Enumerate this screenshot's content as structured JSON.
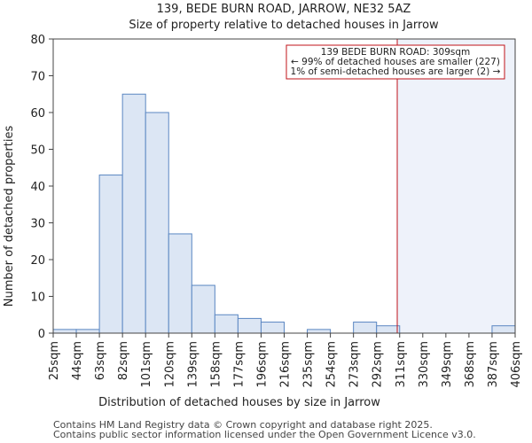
{
  "chart_data": {
    "type": "bar",
    "title": "139, BEDE BURN ROAD, JARROW, NE32 5AZ",
    "subtitle": "Size of property relative to detached houses in Jarrow",
    "xlabel": "Distribution of detached houses by size in Jarrow",
    "ylabel": "Number of detached properties",
    "ylim": [
      0,
      80
    ],
    "yticks": [
      0,
      10,
      20,
      30,
      40,
      50,
      60,
      70,
      80
    ],
    "bin_edges": [
      25,
      44,
      63,
      82,
      101,
      120,
      139,
      158,
      177,
      196,
      216,
      235,
      254,
      273,
      292,
      311,
      330,
      349,
      368,
      387,
      406
    ],
    "tick_labels": [
      "25sqm",
      "44sqm",
      "63sqm",
      "82sqm",
      "101sqm",
      "120sqm",
      "139sqm",
      "158sqm",
      "177sqm",
      "196sqm",
      "216sqm",
      "235sqm",
      "254sqm",
      "273sqm",
      "292sqm",
      "311sqm",
      "330sqm",
      "349sqm",
      "368sqm",
      "387sqm",
      "406sqm"
    ],
    "values": [
      1,
      1,
      43,
      65,
      60,
      27,
      13,
      5,
      4,
      3,
      0,
      1,
      0,
      3,
      2,
      0,
      0,
      0,
      0,
      2
    ],
    "marker": {
      "value": 309,
      "label": "139 BEDE BURN ROAD: 309sqm"
    },
    "annotation": {
      "line1": "139 BEDE BURN ROAD: 309sqm",
      "line2": "← 99% of detached houses are smaller (227)",
      "line3": "1% of semi-detached houses are larger (2) →"
    },
    "colors": {
      "bar_fill": "#dce6f4",
      "bar_stroke": "#5b87c2",
      "marker": "#c0131a",
      "highlight": "#eef2fa"
    }
  },
  "footer": {
    "line1": "Contains HM Land Registry data © Crown copyright and database right 2025.",
    "line2": "Contains public sector information licensed under the Open Government Licence v3.0."
  }
}
